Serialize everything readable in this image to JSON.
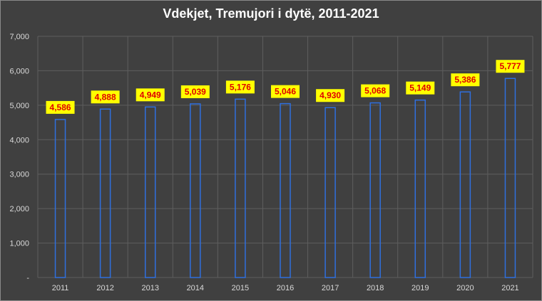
{
  "chart_data": {
    "type": "bar",
    "title": "Vdekjet, Tremujori i dytë, 2011-2021",
    "categories": [
      "2011",
      "2012",
      "2013",
      "2014",
      "2015",
      "2016",
      "2017",
      "2018",
      "2019",
      "2020",
      "2021"
    ],
    "values": [
      4586,
      4888,
      4949,
      5039,
      5176,
      5046,
      4930,
      5068,
      5149,
      5386,
      5777
    ],
    "data_labels": [
      "4,586",
      "4,888",
      "4,949",
      "5,039",
      "5,176",
      "5,046",
      "4,930",
      "5,068",
      "5,149",
      "5,386",
      "5,777"
    ],
    "y_ticks": [
      {
        "value": 0,
        "label": "-"
      },
      {
        "value": 1000,
        "label": "1,000"
      },
      {
        "value": 2000,
        "label": "2,000"
      },
      {
        "value": 3000,
        "label": "3,000"
      },
      {
        "value": 4000,
        "label": "4,000"
      },
      {
        "value": 5000,
        "label": "5,000"
      },
      {
        "value": 6000,
        "label": "6,000"
      },
      {
        "value": 7000,
        "label": "7,000"
      }
    ],
    "ylim": [
      0,
      7000
    ],
    "xlabel": "",
    "ylabel": "",
    "grid": true,
    "legend": "none",
    "colors": {
      "background": "#404040",
      "grid": "#5e5e5e",
      "bar_outline": "#2f6fde",
      "label_box": "#ffff00",
      "label_text": "#e00000",
      "axis_text": "#d9d9d9",
      "title_text": "#ffffff"
    }
  }
}
